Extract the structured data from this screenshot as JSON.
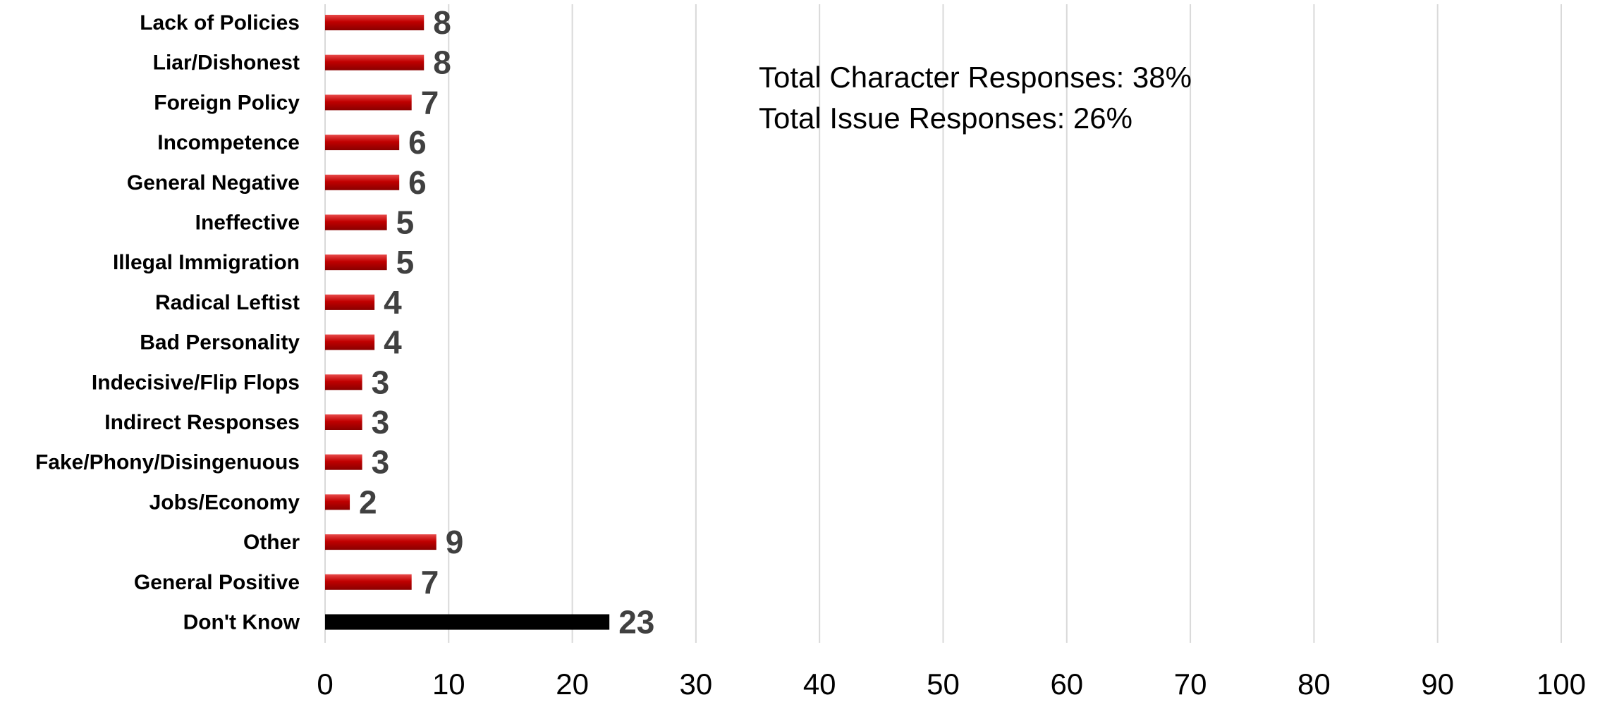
{
  "chart_data": {
    "type": "bar",
    "orientation": "horizontal",
    "categories": [
      "Lack of Policies",
      "Liar/Dishonest",
      "Foreign Policy",
      "Incompetence",
      "General Negative",
      "Ineffective",
      "Illegal Immigration",
      "Radical Leftist",
      "Bad Personality",
      "Indecisive/Flip Flops",
      "Indirect Responses",
      "Fake/Phony/Disingenuous",
      "Jobs/Economy",
      "Other",
      "General Positive",
      "Don't Know"
    ],
    "values": [
      8,
      8,
      7,
      6,
      6,
      5,
      5,
      4,
      4,
      3,
      3,
      3,
      2,
      9,
      7,
      23
    ],
    "bar_colors": [
      "#c00000",
      "#c00000",
      "#c00000",
      "#c00000",
      "#c00000",
      "#c00000",
      "#c00000",
      "#c00000",
      "#c00000",
      "#c00000",
      "#c00000",
      "#c00000",
      "#c00000",
      "#c00000",
      "#c00000",
      "#000000"
    ],
    "xlim": [
      0,
      100
    ],
    "xticks": [
      0,
      10,
      20,
      30,
      40,
      50,
      60,
      70,
      80,
      90,
      100
    ],
    "grid": "vertical",
    "data_labels": true,
    "annotations": [
      "Total Character Responses: 38%",
      "Total Issue Responses: 26%"
    ]
  }
}
